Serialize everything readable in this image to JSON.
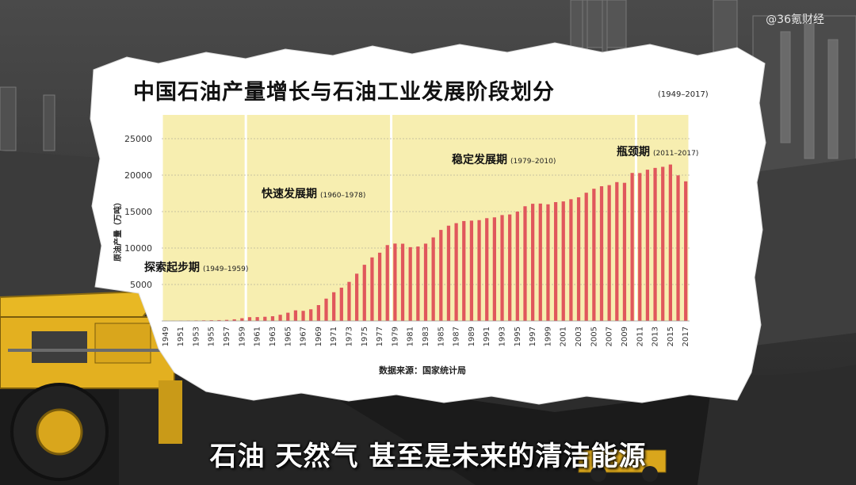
{
  "watermark": "@36氪财经",
  "caption": "石油 天然气 甚至是未来的清洁能源",
  "chart_data": {
    "type": "bar",
    "title": "中国石油产量增长与石油工业发展阶段划分",
    "title_range": "(1949–2017)",
    "ylabel": "原油产量（万吨）",
    "source": "数据来源：国家统计局",
    "ylim": [
      0,
      25000
    ],
    "yticks": [
      5000,
      10000,
      15000,
      20000,
      25000
    ],
    "xtick_labels": [
      "1949",
      "1951",
      "1953",
      "1955",
      "1957",
      "1959",
      "1961",
      "1963",
      "1965",
      "1967",
      "1969",
      "1971",
      "1973",
      "1975",
      "1977",
      "1979",
      "1981",
      "1983",
      "1985",
      "1987",
      "1989",
      "1991",
      "1993",
      "1995",
      "1997",
      "1999",
      "2001",
      "2003",
      "2005",
      "2007",
      "2009",
      "2011",
      "2013",
      "2015",
      "2017"
    ],
    "grid": true,
    "bar_color": "#e0575c",
    "band_color": "#f7eeb0",
    "years": [
      1949,
      1950,
      1951,
      1952,
      1953,
      1954,
      1955,
      1956,
      1957,
      1958,
      1959,
      1960,
      1961,
      1962,
      1963,
      1964,
      1965,
      1966,
      1967,
      1968,
      1969,
      1970,
      1971,
      1972,
      1973,
      1974,
      1975,
      1976,
      1977,
      1978,
      1979,
      1980,
      1981,
      1982,
      1983,
      1984,
      1985,
      1986,
      1987,
      1988,
      1989,
      1990,
      1991,
      1992,
      1993,
      1994,
      1995,
      1996,
      1997,
      1998,
      1999,
      2000,
      2001,
      2002,
      2003,
      2004,
      2005,
      2006,
      2007,
      2008,
      2009,
      2010,
      2011,
      2012,
      2013,
      2014,
      2015,
      2016,
      2017
    ],
    "values": [
      12,
      20,
      31,
      44,
      62,
      79,
      97,
      116,
      146,
      226,
      373,
      520,
      531,
      575,
      648,
      848,
      1131,
      1455,
      1388,
      1599,
      2174,
      3065,
      3941,
      4567,
      5361,
      6485,
      7706,
      8716,
      9364,
      10405,
      10615,
      10595,
      10122,
      10212,
      10607,
      11461,
      12490,
      13069,
      13414,
      13705,
      13764,
      13831,
      14099,
      14210,
      14524,
      14608,
      15005,
      15733,
      16074,
      16100,
      16000,
      16300,
      16396,
      16700,
      16960,
      17587,
      18135,
      18477,
      18632,
      19044,
      18949,
      20301,
      20288,
      20748,
      20992,
      21143,
      21456,
      19969,
      19151
    ],
    "phases": [
      {
        "label": "探索起步期",
        "range": "(1949–1959)",
        "start": 1949,
        "end": 1959
      },
      {
        "label": "快速发展期",
        "range": "(1960–1978)",
        "start": 1960,
        "end": 1978
      },
      {
        "label": "稳定发展期",
        "range": "(1979–2010)",
        "start": 1979,
        "end": 2010
      },
      {
        "label": "瓶颈期",
        "range": "(2011–2017)",
        "start": 2011,
        "end": 2017
      }
    ]
  }
}
